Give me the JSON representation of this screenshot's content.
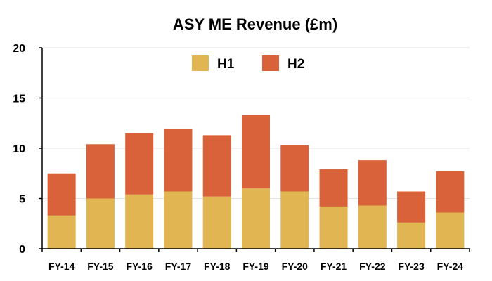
{
  "chart_data": {
    "type": "bar",
    "stacked": true,
    "title": "ASY ME Revenue (£m)",
    "xlabel": "",
    "ylabel": "",
    "categories": [
      "FY-14",
      "FY-15",
      "FY-16",
      "FY-17",
      "FY-18",
      "FY-19",
      "FY-20",
      "FY-21",
      "FY-22",
      "FY-23",
      "FY-24"
    ],
    "series": [
      {
        "name": "H1",
        "color": "#e2b553",
        "values": [
          3.3,
          5.0,
          5.4,
          5.7,
          5.2,
          6.0,
          5.7,
          4.2,
          4.3,
          2.6,
          3.6
        ]
      },
      {
        "name": "H2",
        "color": "#d9623a",
        "values": [
          4.2,
          5.4,
          6.1,
          6.2,
          6.1,
          7.3,
          4.6,
          3.7,
          4.5,
          3.1,
          4.1
        ]
      }
    ],
    "ylim": [
      0,
      20
    ],
    "yticks": [
      0,
      5,
      10,
      15,
      20
    ],
    "grid": true,
    "legend": "top-center"
  }
}
